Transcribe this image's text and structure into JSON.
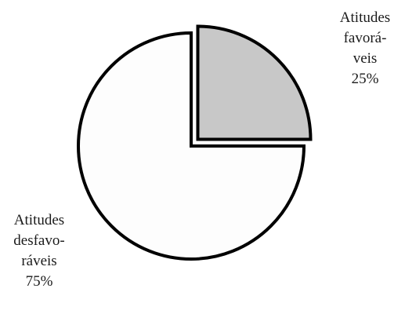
{
  "chart_data": {
    "type": "pie",
    "title": "",
    "slices": [
      {
        "key": "favoraveis",
        "label_lines": [
          "Atitudes",
          "favorá-",
          "veis"
        ],
        "value": 25,
        "value_label": "25%",
        "exploded": true,
        "color": "#c8c8c8"
      },
      {
        "key": "desfavoraveis",
        "label_lines": [
          "Atitudes",
          "desfavo-",
          "ráveis"
        ],
        "value": 75,
        "value_label": "75%",
        "exploded": false,
        "color": "#fdfdfd"
      }
    ],
    "start_angle": "12 o'clock",
    "direction": "clockwise",
    "legend": "none",
    "stroke_color": "#000000"
  }
}
